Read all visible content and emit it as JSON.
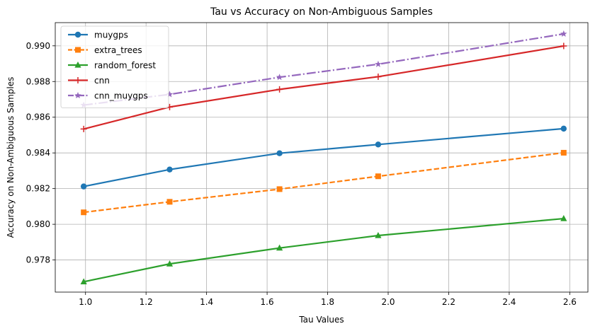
{
  "chart_data": {
    "type": "line",
    "title": "Tau vs Accuracy on Non-Ambiguous Samples",
    "xlabel": "Tau Values",
    "ylabel": "Accuracy on Non-Ambiguous Samples",
    "x": [
      0.994,
      1.278,
      1.641,
      1.967,
      2.58
    ],
    "xlim": [
      0.9,
      2.66
    ],
    "ylim": [
      0.9762,
      0.9913
    ],
    "xticks": [
      1.0,
      1.2,
      1.4,
      1.6,
      1.8,
      2.0,
      2.2,
      2.4,
      2.6
    ],
    "xtick_labels": [
      "1.0",
      "1.2",
      "1.4",
      "1.6",
      "1.8",
      "2.0",
      "2.2",
      "2.4",
      "2.6"
    ],
    "yticks": [
      0.978,
      0.98,
      0.982,
      0.984,
      0.986,
      0.988,
      0.99
    ],
    "ytick_labels": [
      "0.978",
      "0.980",
      "0.982",
      "0.984",
      "0.986",
      "0.988",
      "0.990"
    ],
    "grid": true,
    "legend_position": "top-left",
    "series": [
      {
        "name": "muygps",
        "values": [
          0.98212,
          0.98307,
          0.98398,
          0.98447,
          0.98536
        ],
        "color": "#1f77b4",
        "marker": "circle",
        "dash": "solid"
      },
      {
        "name": "extra_trees",
        "values": [
          0.98067,
          0.98126,
          0.98197,
          0.98269,
          0.98401
        ],
        "color": "#ff7f0e",
        "marker": "square",
        "dash": "dashed"
      },
      {
        "name": "random_forest",
        "values": [
          0.97678,
          0.97778,
          0.97867,
          0.97937,
          0.98032
        ],
        "color": "#2ca02c",
        "marker": "triangle",
        "dash": "solid"
      },
      {
        "name": "cnn",
        "values": [
          0.98534,
          0.98657,
          0.98756,
          0.98827,
          0.98999
        ],
        "color": "#d62728",
        "marker": "plus",
        "dash": "solid"
      },
      {
        "name": "cnn_muygps",
        "values": [
          0.98668,
          0.98728,
          0.98824,
          0.98897,
          0.99067
        ],
        "color": "#9467bd",
        "marker": "star",
        "dash": "dashdot"
      }
    ]
  }
}
